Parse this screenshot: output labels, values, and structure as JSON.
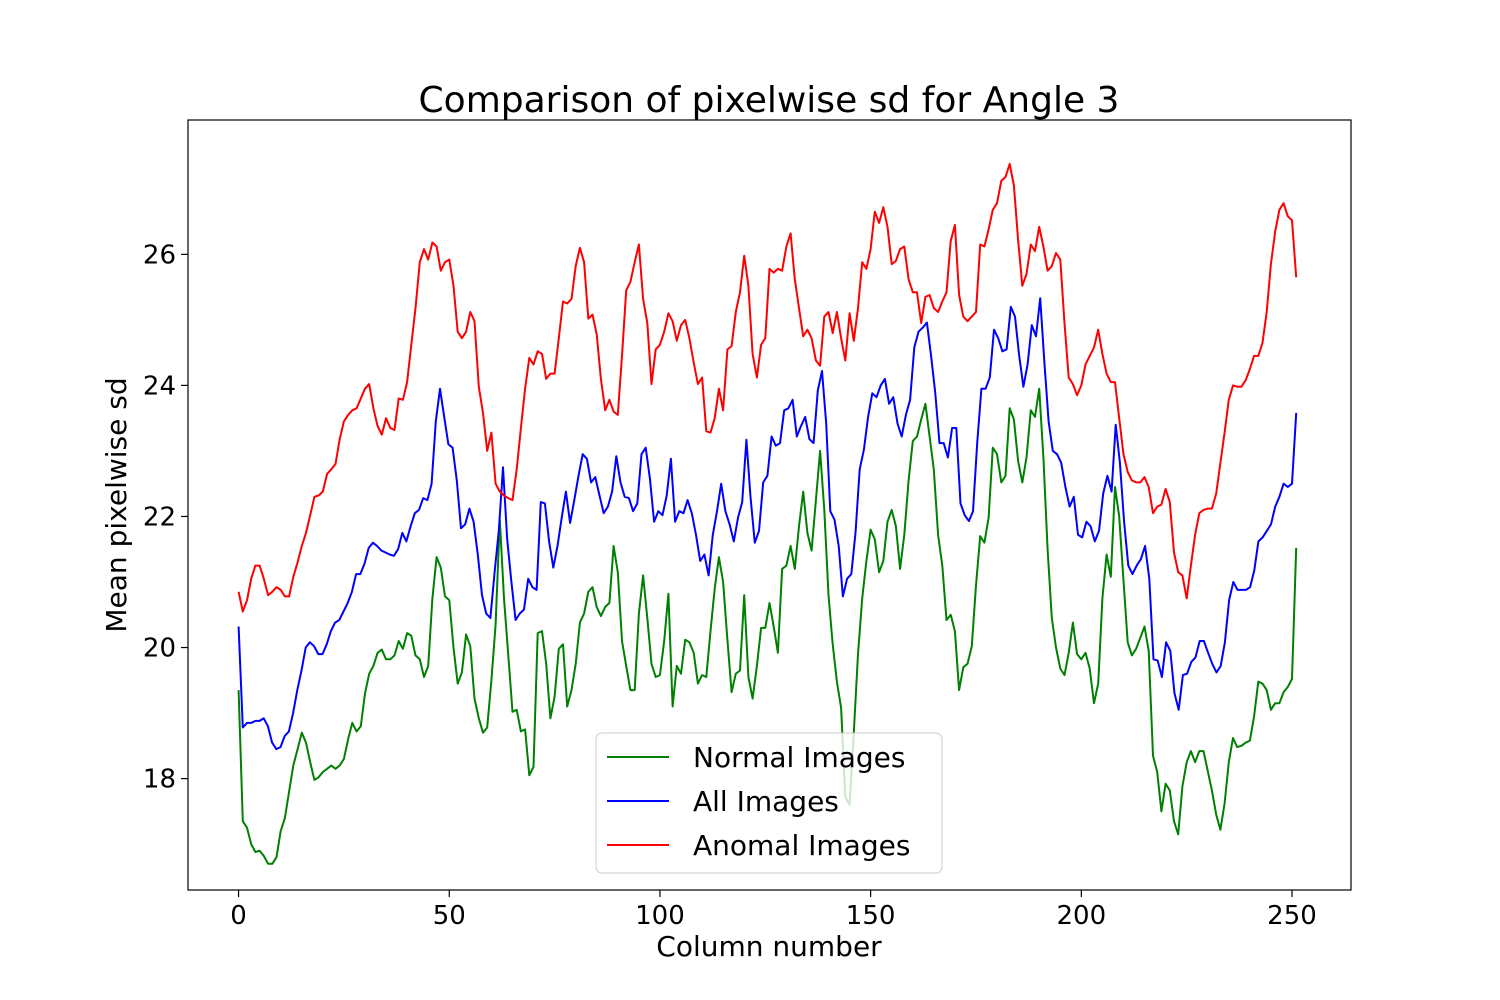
{
  "chart_data": {
    "type": "line",
    "title": "Comparison of pixelwise sd for Angle 3",
    "xlabel": "Column number",
    "ylabel": "Mean pixelwise sd",
    "xlim": [
      -12,
      264
    ],
    "ylim": [
      16.3,
      28.05
    ],
    "x_ticks": [
      0,
      50,
      100,
      150,
      200,
      250
    ],
    "y_ticks": [
      18,
      20,
      22,
      24,
      26
    ],
    "grid": false,
    "legend_position": "bottom-center",
    "x": {
      "start": 0,
      "end": 251
    },
    "series": [
      {
        "name": "Normal Images",
        "color": "#008000",
        "values": [
          19.35,
          17.35,
          17.25,
          17.0,
          16.88,
          16.9,
          16.82,
          16.7,
          16.7,
          16.8,
          17.2,
          17.4,
          17.8,
          18.2,
          18.45,
          18.7,
          18.55,
          18.25,
          17.98,
          18.02,
          18.1,
          18.15,
          18.2,
          18.15,
          18.2,
          18.3,
          18.6,
          18.85,
          18.72,
          18.8,
          19.3,
          19.6,
          19.72,
          19.92,
          19.97,
          19.82,
          19.82,
          19.88,
          20.1,
          19.98,
          20.22,
          20.18,
          19.88,
          19.82,
          19.55,
          19.72,
          20.75,
          21.38,
          21.22,
          20.78,
          20.72,
          20.0,
          19.45,
          19.62,
          20.2,
          20.02,
          19.22,
          18.92,
          18.7,
          18.78,
          19.5,
          20.35,
          21.95,
          20.75,
          19.9,
          19.02,
          19.05,
          18.72,
          18.75,
          18.05,
          18.18,
          20.22,
          20.25,
          19.75,
          18.92,
          19.25,
          19.98,
          20.05,
          19.1,
          19.35,
          19.75,
          20.38,
          20.52,
          20.85,
          20.92,
          20.62,
          20.48,
          20.62,
          20.68,
          21.55,
          21.15,
          20.1,
          19.72,
          19.35,
          19.35,
          20.52,
          21.1,
          20.45,
          19.75,
          19.55,
          19.58,
          20.1,
          20.82,
          19.1,
          19.72,
          19.6,
          20.12,
          20.08,
          19.92,
          19.45,
          19.58,
          19.55,
          20.25,
          20.9,
          21.38,
          21.0,
          20.12,
          19.32,
          19.6,
          19.65,
          20.8,
          19.55,
          19.22,
          19.72,
          20.3,
          20.3,
          20.68,
          20.32,
          19.92,
          21.2,
          21.25,
          21.55,
          21.2,
          21.85,
          22.38,
          21.75,
          21.48,
          22.25,
          23.0,
          22.1,
          20.8,
          20.05,
          19.48,
          19.08,
          17.72,
          17.6,
          18.7,
          19.9,
          20.75,
          21.32,
          21.8,
          21.65,
          21.15,
          21.32,
          21.92,
          22.1,
          21.85,
          21.2,
          21.72,
          22.55,
          23.15,
          23.22,
          23.48,
          23.72,
          23.22,
          22.72,
          21.72,
          21.25,
          20.42,
          20.5,
          20.25,
          19.35,
          19.7,
          19.75,
          20.02,
          20.95,
          21.7,
          21.6,
          21.98,
          23.05,
          22.95,
          22.52,
          22.62,
          23.65,
          23.48,
          22.85,
          22.52,
          22.9,
          23.62,
          23.52,
          23.95,
          22.9,
          21.5,
          20.45,
          20.0,
          19.68,
          19.58,
          19.92,
          20.38,
          19.9,
          19.82,
          19.92,
          19.68,
          19.15,
          19.45,
          20.75,
          21.42,
          21.08,
          22.45,
          22.0,
          21.02,
          20.08,
          19.88,
          19.98,
          20.15,
          20.32,
          19.95,
          18.35,
          18.1,
          17.5,
          17.92,
          17.82,
          17.35,
          17.15,
          17.88,
          18.25,
          18.42,
          18.25,
          18.42,
          18.42,
          18.12,
          17.82,
          17.45,
          17.22,
          17.62,
          18.25,
          18.62,
          18.48,
          18.5,
          18.55,
          18.58,
          18.95,
          19.48,
          19.45,
          19.35,
          19.05,
          19.15,
          19.15,
          19.32,
          19.4,
          19.52,
          21.52
        ]
      },
      {
        "name": "All Images",
        "color": "#0000ff",
        "values": [
          20.32,
          18.78,
          18.85,
          18.85,
          18.88,
          18.88,
          18.92,
          18.8,
          18.55,
          18.45,
          18.48,
          18.65,
          18.72,
          19.0,
          19.35,
          19.65,
          20.0,
          20.08,
          20.02,
          19.9,
          19.9,
          20.05,
          20.25,
          20.38,
          20.42,
          20.55,
          20.68,
          20.85,
          21.12,
          21.12,
          21.28,
          21.52,
          21.6,
          21.55,
          21.48,
          21.45,
          21.42,
          21.4,
          21.5,
          21.75,
          21.62,
          21.85,
          22.05,
          22.1,
          22.28,
          22.25,
          22.5,
          23.45,
          23.95,
          23.52,
          23.1,
          23.05,
          22.55,
          21.82,
          21.88,
          22.12,
          21.92,
          21.42,
          20.8,
          20.52,
          20.45,
          21.15,
          21.78,
          22.75,
          21.65,
          21.0,
          20.42,
          20.52,
          20.58,
          21.05,
          20.92,
          20.88,
          22.22,
          22.2,
          21.62,
          21.22,
          21.55,
          21.98,
          22.38,
          21.9,
          22.25,
          22.62,
          22.95,
          22.88,
          22.52,
          22.6,
          22.32,
          22.05,
          22.15,
          22.38,
          22.92,
          22.52,
          22.3,
          22.28,
          22.08,
          22.2,
          22.95,
          23.05,
          22.58,
          21.92,
          22.08,
          22.02,
          22.32,
          22.88,
          21.92,
          22.08,
          22.05,
          22.25,
          22.05,
          21.72,
          21.32,
          21.42,
          21.1,
          21.72,
          22.08,
          22.5,
          22.08,
          21.88,
          21.62,
          21.98,
          22.22,
          23.17,
          22.28,
          21.6,
          21.78,
          22.52,
          22.62,
          23.22,
          23.08,
          23.12,
          23.62,
          23.65,
          23.78,
          23.22,
          23.38,
          23.52,
          23.18,
          23.12,
          23.92,
          24.22,
          23.42,
          22.08,
          21.95,
          21.55,
          20.78,
          21.05,
          21.12,
          21.75,
          22.72,
          23.02,
          23.52,
          23.88,
          23.82,
          24.0,
          24.1,
          23.72,
          23.82,
          23.42,
          23.22,
          23.55,
          23.78,
          24.58,
          24.82,
          24.88,
          24.96,
          24.45,
          23.88,
          23.12,
          23.12,
          22.9,
          23.35,
          23.35,
          22.2,
          22.02,
          21.93,
          22.08,
          23.12,
          23.95,
          23.95,
          24.12,
          24.85,
          24.72,
          24.52,
          24.55,
          25.2,
          25.05,
          24.45,
          23.98,
          24.32,
          24.92,
          24.75,
          25.33,
          24.35,
          23.45,
          23.0,
          22.95,
          22.82,
          22.45,
          22.15,
          22.3,
          21.72,
          21.68,
          21.92,
          21.85,
          21.62,
          21.78,
          22.35,
          22.62,
          22.38,
          23.4,
          22.82,
          21.92,
          21.25,
          21.12,
          21.25,
          21.35,
          21.55,
          21.05,
          19.82,
          19.8,
          19.55,
          20.08,
          19.95,
          19.3,
          19.05,
          19.58,
          19.6,
          19.78,
          19.85,
          20.1,
          20.1,
          19.92,
          19.75,
          19.62,
          19.72,
          20.08,
          20.72,
          21.0,
          20.88,
          20.88,
          20.88,
          20.92,
          21.18,
          21.62,
          21.68,
          21.78,
          21.88,
          22.15,
          22.3,
          22.5,
          22.45,
          22.5,
          23.58
        ]
      },
      {
        "name": "Anomal Images",
        "color": "#ff0000",
        "values": [
          20.85,
          20.55,
          20.72,
          21.05,
          21.25,
          21.25,
          21.05,
          20.8,
          20.85,
          20.92,
          20.88,
          20.78,
          20.78,
          21.08,
          21.3,
          21.55,
          21.75,
          22.02,
          22.3,
          22.32,
          22.38,
          22.65,
          22.72,
          22.8,
          23.18,
          23.45,
          23.55,
          23.62,
          23.65,
          23.8,
          23.95,
          24.02,
          23.65,
          23.38,
          23.25,
          23.5,
          23.35,
          23.32,
          23.8,
          23.78,
          24.05,
          24.62,
          25.18,
          25.88,
          26.08,
          25.92,
          26.18,
          26.12,
          25.75,
          25.88,
          25.92,
          25.52,
          24.82,
          24.72,
          24.82,
          25.12,
          24.98,
          23.98,
          23.58,
          23.0,
          23.28,
          22.5,
          22.38,
          22.32,
          22.28,
          22.25,
          22.72,
          23.35,
          23.95,
          24.42,
          24.32,
          24.52,
          24.48,
          24.1,
          24.18,
          24.18,
          24.72,
          25.28,
          25.25,
          25.32,
          25.82,
          26.1,
          25.88,
          25.02,
          25.08,
          24.78,
          24.1,
          23.62,
          23.78,
          23.6,
          23.55,
          24.45,
          25.45,
          25.58,
          25.88,
          26.15,
          25.32,
          24.95,
          24.02,
          24.55,
          24.62,
          24.82,
          25.1,
          24.98,
          24.68,
          24.92,
          25.0,
          24.72,
          24.35,
          24.02,
          24.12,
          23.3,
          23.28,
          23.5,
          23.95,
          23.62,
          24.55,
          24.6,
          25.12,
          25.42,
          25.98,
          25.52,
          24.48,
          24.12,
          24.62,
          24.72,
          25.78,
          25.72,
          25.78,
          25.75,
          26.12,
          26.32,
          25.62,
          25.18,
          24.75,
          24.85,
          24.72,
          24.38,
          24.3,
          25.05,
          25.12,
          24.8,
          25.12,
          24.72,
          24.38,
          25.1,
          24.68,
          25.18,
          25.88,
          25.78,
          26.08,
          26.65,
          26.48,
          26.72,
          26.42,
          25.85,
          25.9,
          26.08,
          26.12,
          25.62,
          25.42,
          25.42,
          24.95,
          25.35,
          25.38,
          25.18,
          25.12,
          25.28,
          25.42,
          26.2,
          26.45,
          25.38,
          25.05,
          24.98,
          25.05,
          25.12,
          26.15,
          26.12,
          26.38,
          26.68,
          26.78,
          27.12,
          27.18,
          27.38,
          27.05,
          26.22,
          25.52,
          25.7,
          26.15,
          26.05,
          26.42,
          26.12,
          25.75,
          25.82,
          26.02,
          25.92,
          24.95,
          24.12,
          24.02,
          23.85,
          24.0,
          24.32,
          24.45,
          24.58,
          24.85,
          24.48,
          24.18,
          24.05,
          24.05,
          23.5,
          22.95,
          22.68,
          22.55,
          22.52,
          22.52,
          22.6,
          22.45,
          22.05,
          22.15,
          22.18,
          22.42,
          22.22,
          21.45,
          21.15,
          21.1,
          20.75,
          21.25,
          21.72,
          22.05,
          22.1,
          22.12,
          22.12,
          22.35,
          22.82,
          23.28,
          23.78,
          24.0,
          23.98,
          23.98,
          24.08,
          24.25,
          24.45,
          24.45,
          24.65,
          25.12,
          25.85,
          26.35,
          26.68,
          26.78,
          26.58,
          26.52,
          25.65
        ]
      }
    ]
  }
}
